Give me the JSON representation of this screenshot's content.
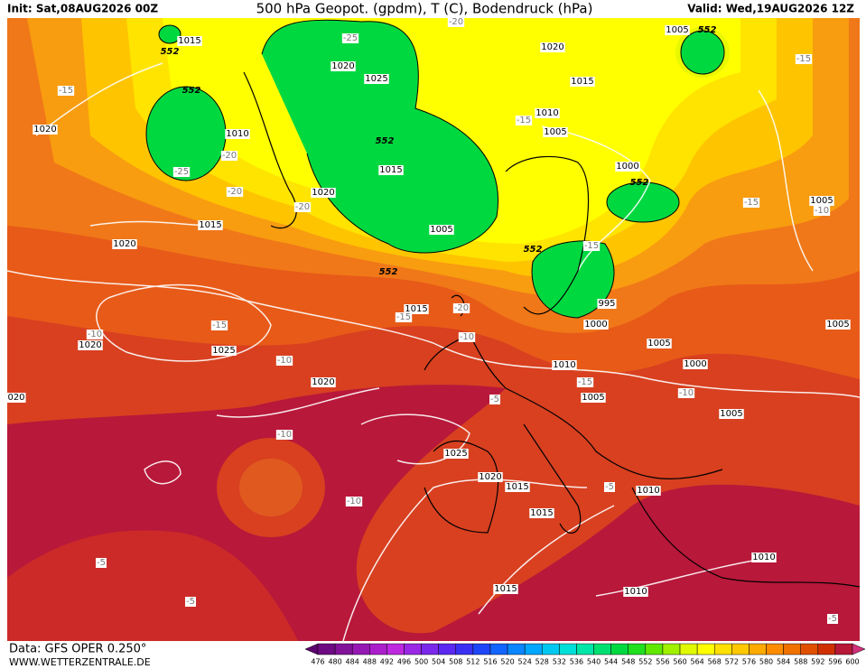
{
  "header": {
    "init": "Init: Sat,08AUG2026 00Z",
    "title": "500 hPa Geopot. (gpdm), T (C), Bodendruck (hPa)",
    "valid": "Valid: Wed,19AUG2026 12Z"
  },
  "footer": {
    "source": "Data: GFS OPER 0.250°",
    "site": "WWW.WETTERZENTRALE.DE"
  },
  "colorbar": {
    "levels": [
      476,
      480,
      484,
      488,
      492,
      496,
      500,
      504,
      508,
      512,
      516,
      520,
      524,
      528,
      532,
      536,
      540,
      544,
      548,
      552,
      556,
      560,
      564,
      568,
      572,
      576,
      580,
      584,
      588,
      592,
      596,
      600
    ],
    "colors": [
      "#5c006e",
      "#6e0a82",
      "#82129a",
      "#9618b4",
      "#aa1ecc",
      "#be28e0",
      "#9a28e6",
      "#7a28ec",
      "#5a28f0",
      "#3a30f4",
      "#1e46f8",
      "#1464ff",
      "#0a86ff",
      "#00a6ff",
      "#00c8f0",
      "#00e0d8",
      "#00e6a8",
      "#00e070",
      "#00d840",
      "#20e020",
      "#60e800",
      "#a0f000",
      "#e0f800",
      "#ffff00",
      "#ffe000",
      "#ffc800",
      "#ffaa00",
      "#ff8c00",
      "#f07000",
      "#e05000",
      "#d03000",
      "#b81838",
      "#d0307a"
    ]
  },
  "map_labels": [
    1015,
    552,
    1020,
    1005,
    552,
    -15,
    -15,
    552,
    1015,
    1020,
    1025,
    -25,
    -20,
    1010,
    -15,
    1020,
    1010,
    1005,
    552,
    -20,
    -25,
    1015,
    1000,
    552,
    -20,
    1020,
    -20,
    -15,
    1005,
    -10,
    1015,
    1005,
    552,
    -15,
    1020,
    552,
    1015,
    -15,
    -20,
    995,
    1000,
    -15,
    -10,
    1020,
    1025,
    -10,
    1005,
    1005,
    -10,
    1000,
    1010,
    1020,
    -15,
    -10,
    "020",
    -5,
    1005,
    1005,
    -10,
    1025,
    1020,
    1015,
    -5,
    1010,
    -10,
    1015,
    1010,
    -5,
    1015,
    1010,
    -5,
    -5
  ]
}
